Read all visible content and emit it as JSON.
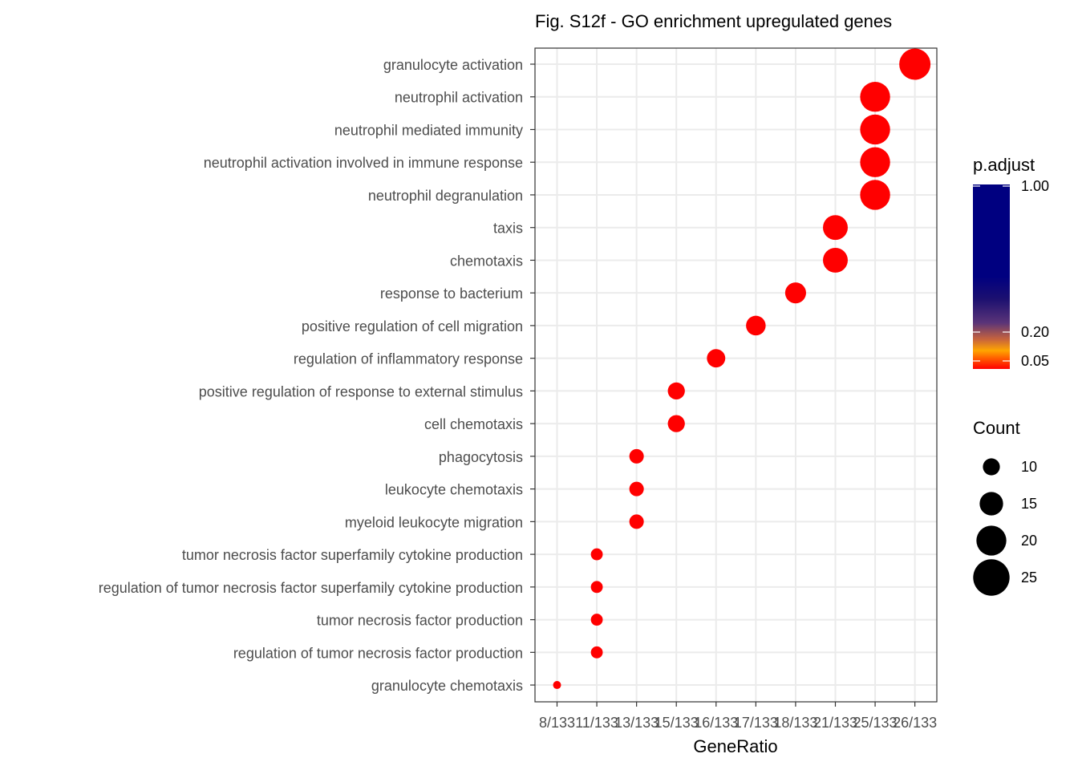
{
  "chart_data": {
    "type": "scatter",
    "title": "Fig. S12f - GO enrichment upregulated genes",
    "xlabel": "GeneRatio",
    "ylabel": "",
    "x_categories": [
      "8/133",
      "11/133",
      "13/133",
      "15/133",
      "16/133",
      "17/133",
      "18/133",
      "21/133",
      "25/133",
      "26/133"
    ],
    "points": [
      {
        "term": "granulocyte activation",
        "gene_ratio": "26/133",
        "count": 26,
        "p_adjust": 0.0
      },
      {
        "term": "neutrophil activation",
        "gene_ratio": "25/133",
        "count": 25,
        "p_adjust": 0.0
      },
      {
        "term": "neutrophil mediated immunity",
        "gene_ratio": "25/133",
        "count": 25,
        "p_adjust": 0.0
      },
      {
        "term": "neutrophil activation involved in immune response",
        "gene_ratio": "25/133",
        "count": 25,
        "p_adjust": 0.0
      },
      {
        "term": "neutrophil degranulation",
        "gene_ratio": "25/133",
        "count": 25,
        "p_adjust": 0.0
      },
      {
        "term": "taxis",
        "gene_ratio": "21/133",
        "count": 21,
        "p_adjust": 0.0
      },
      {
        "term": "chemotaxis",
        "gene_ratio": "21/133",
        "count": 21,
        "p_adjust": 0.0
      },
      {
        "term": "response to bacterium",
        "gene_ratio": "18/133",
        "count": 18,
        "p_adjust": 0.0
      },
      {
        "term": "positive regulation of cell migration",
        "gene_ratio": "17/133",
        "count": 17,
        "p_adjust": 0.0
      },
      {
        "term": "regulation of inflammatory response",
        "gene_ratio": "16/133",
        "count": 16,
        "p_adjust": 0.0
      },
      {
        "term": "positive regulation of response to external stimulus",
        "gene_ratio": "15/133",
        "count": 15,
        "p_adjust": 0.0
      },
      {
        "term": "cell chemotaxis",
        "gene_ratio": "15/133",
        "count": 15,
        "p_adjust": 0.0
      },
      {
        "term": "phagocytosis",
        "gene_ratio": "13/133",
        "count": 13,
        "p_adjust": 0.0
      },
      {
        "term": "leukocyte chemotaxis",
        "gene_ratio": "13/133",
        "count": 13,
        "p_adjust": 0.0
      },
      {
        "term": "myeloid leukocyte migration",
        "gene_ratio": "13/133",
        "count": 13,
        "p_adjust": 0.0
      },
      {
        "term": "tumor necrosis factor superfamily cytokine production",
        "gene_ratio": "11/133",
        "count": 11,
        "p_adjust": 0.0
      },
      {
        "term": "regulation of tumor necrosis factor superfamily cytokine production",
        "gene_ratio": "11/133",
        "count": 11,
        "p_adjust": 0.0
      },
      {
        "term": "tumor necrosis factor production",
        "gene_ratio": "11/133",
        "count": 11,
        "p_adjust": 0.0
      },
      {
        "term": "regulation of tumor necrosis factor production",
        "gene_ratio": "11/133",
        "count": 11,
        "p_adjust": 0.0
      },
      {
        "term": "granulocyte chemotaxis",
        "gene_ratio": "8/133",
        "count": 8,
        "p_adjust": 0.0
      }
    ],
    "point_color": "#ff0000",
    "color_legend": {
      "title": "p.adjust",
      "ticks": [
        "1.00",
        "0.20",
        "0.05"
      ],
      "colors": {
        "low": "#ff0000",
        "mid_orange": "#ffa500",
        "mid_purple": "#4b2a6e",
        "high": "#000080"
      }
    },
    "size_legend": {
      "title": "Count",
      "values": [
        10,
        15,
        20,
        25
      ],
      "labels": [
        "10",
        "15",
        "20",
        "25"
      ],
      "color": "#000000"
    },
    "grid": true,
    "legend_position": "right"
  }
}
